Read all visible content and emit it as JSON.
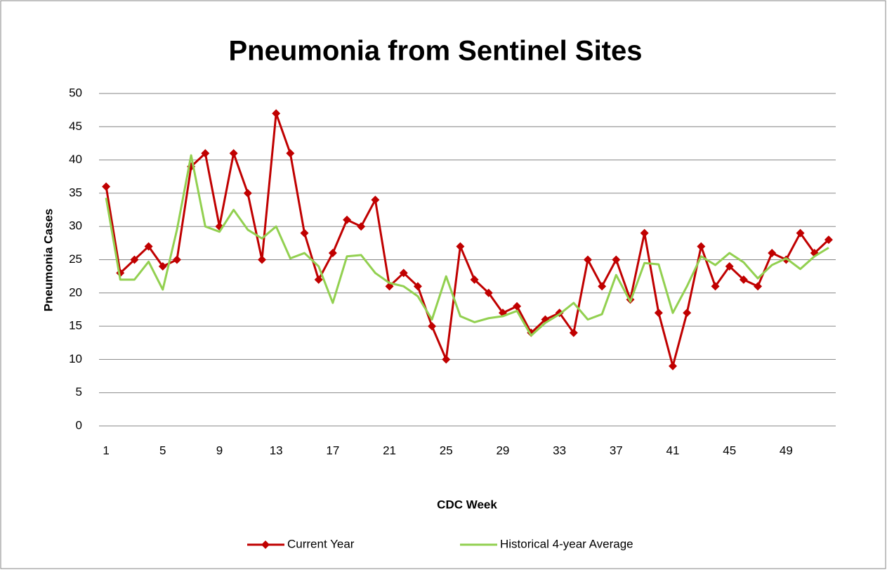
{
  "chart_data": {
    "type": "line",
    "title": "Pneumonia from Sentinel Sites",
    "x_label": "CDC Week",
    "y_label": "Pneumonia Cases",
    "x": [
      1,
      2,
      3,
      4,
      5,
      6,
      7,
      8,
      9,
      10,
      11,
      12,
      13,
      14,
      15,
      16,
      17,
      18,
      19,
      20,
      21,
      22,
      23,
      24,
      25,
      26,
      27,
      28,
      29,
      30,
      31,
      32,
      33,
      34,
      35,
      36,
      37,
      38,
      39,
      40,
      41,
      42,
      43,
      44,
      45,
      46,
      47,
      48,
      49,
      50,
      51,
      52
    ],
    "xlim": [
      0.5,
      52.5
    ],
    "xticks": [
      1,
      5,
      9,
      13,
      17,
      21,
      25,
      29,
      33,
      37,
      41,
      45,
      49
    ],
    "ylim": [
      0,
      50
    ],
    "yticks": [
      0,
      5,
      10,
      15,
      20,
      25,
      30,
      35,
      40,
      45,
      50
    ],
    "grid": true,
    "legend": "bottom",
    "series": [
      {
        "name": "Current Year",
        "color": "#c00000",
        "marker": "diamond",
        "values": [
          36,
          23,
          25,
          27,
          24,
          25,
          39,
          41,
          30,
          41,
          35,
          25,
          47,
          41,
          29,
          22,
          26,
          31,
          30,
          34,
          21,
          23,
          21,
          15,
          10,
          27,
          22,
          20,
          17,
          18,
          14,
          16,
          17,
          14,
          25,
          21,
          25,
          19,
          29,
          17,
          9,
          17,
          27,
          21,
          24,
          22,
          21,
          26,
          25,
          29,
          26,
          28
        ]
      },
      {
        "name": "Historical 4-year Average",
        "color": "#92d050",
        "marker": "none",
        "values": [
          34.3,
          22,
          22,
          24.7,
          20.5,
          29.5,
          40.7,
          30,
          29.2,
          32.5,
          29.5,
          28.2,
          30,
          25.2,
          26,
          24,
          18.5,
          25.5,
          25.7,
          23,
          21.5,
          21,
          19.5,
          16,
          22.5,
          16.5,
          15.6,
          16.2,
          16.5,
          17.3,
          13.6,
          15.5,
          16.8,
          18.5,
          16,
          16.8,
          22.7,
          18.7,
          24.5,
          24.3,
          17,
          21,
          25.5,
          24.2,
          26,
          24.6,
          22.2,
          24.2,
          25.2,
          23.6,
          25.5,
          26.8
        ]
      }
    ]
  }
}
